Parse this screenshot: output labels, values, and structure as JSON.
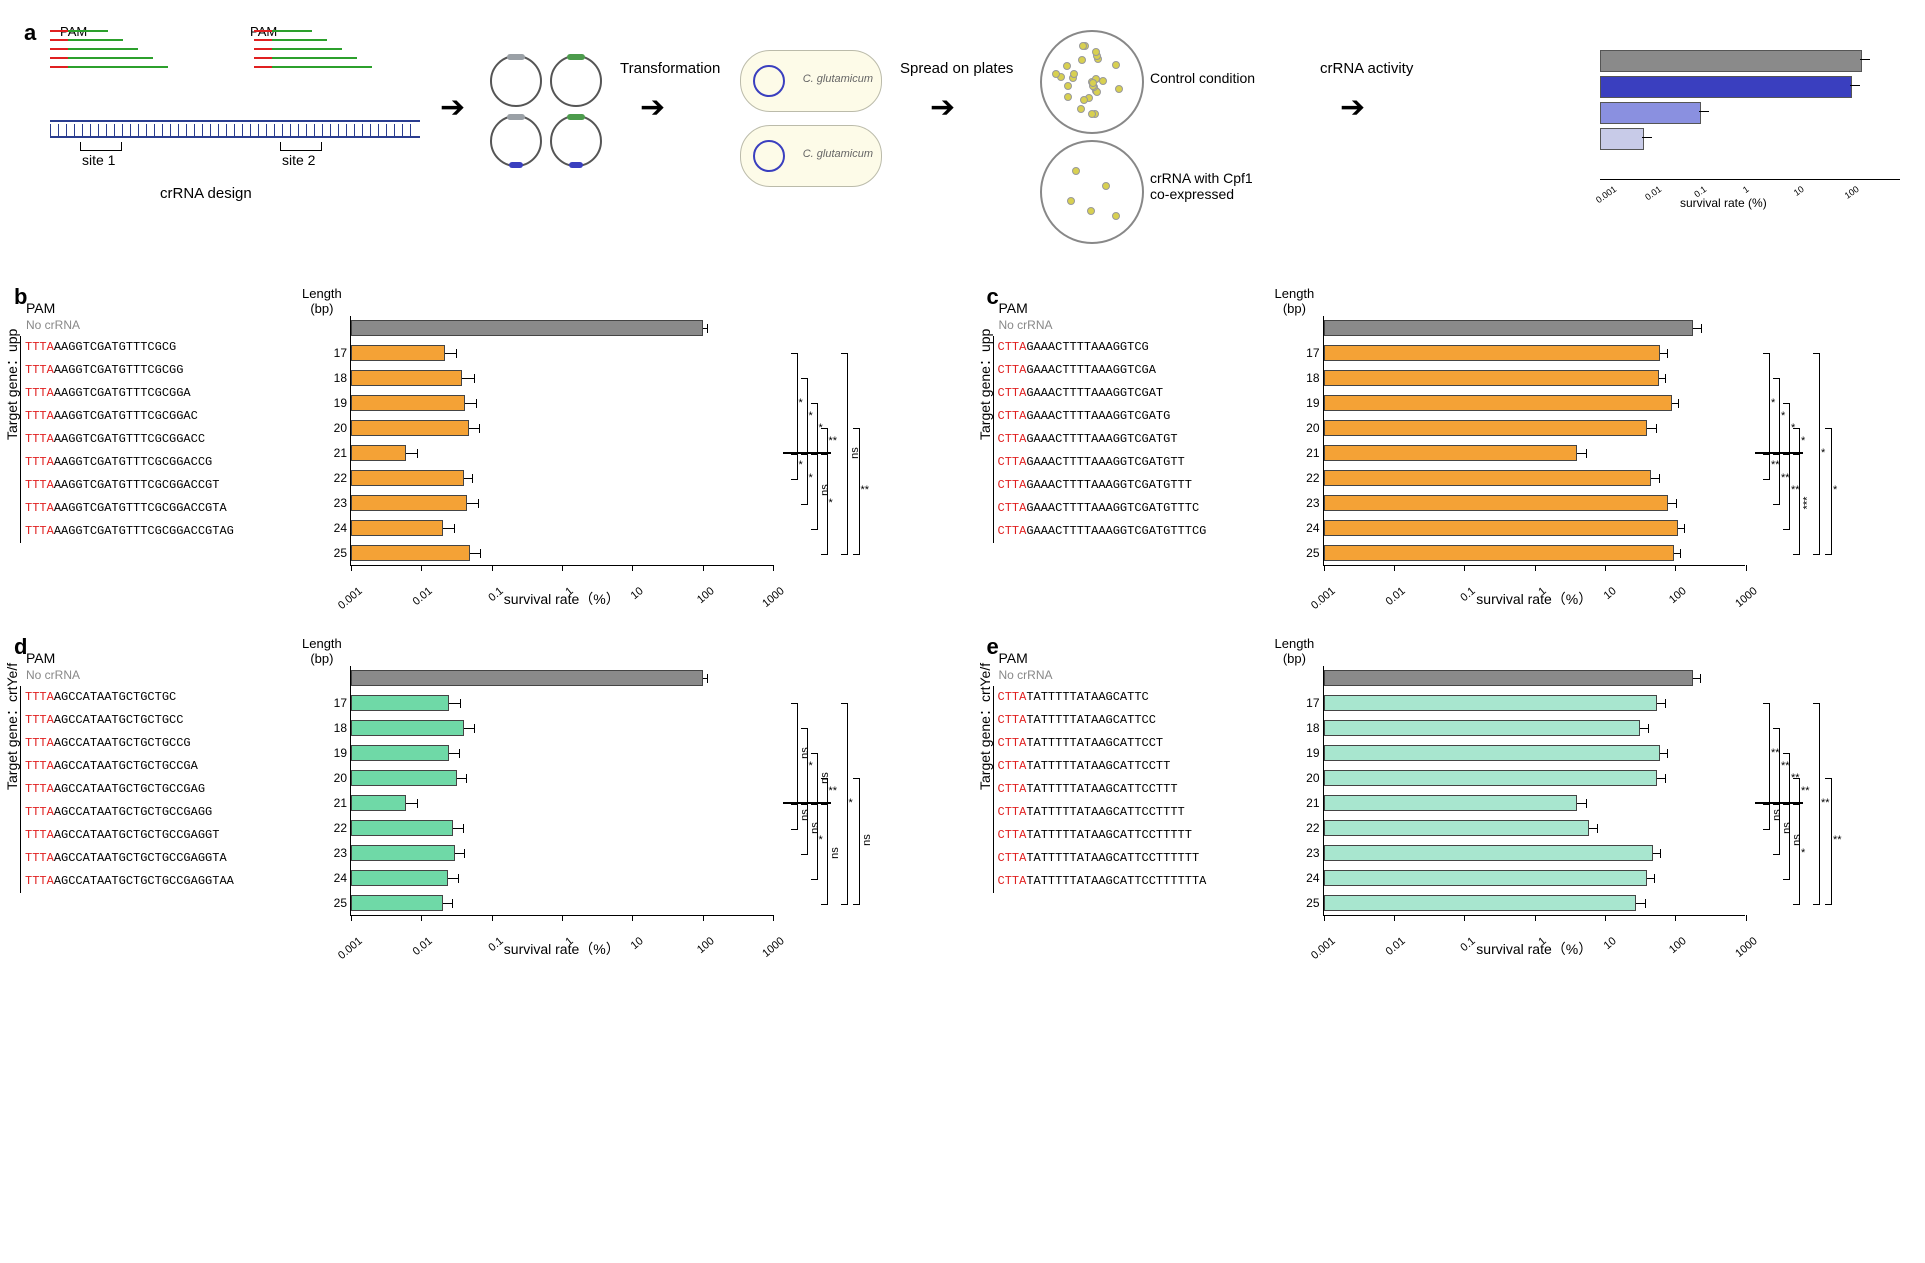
{
  "panel_labels": {
    "a": "a",
    "b": "b",
    "c": "c",
    "d": "d",
    "e": "e"
  },
  "panel_a": {
    "pam_label": "PAM",
    "site1": "site 1",
    "site2": "site 2",
    "crrna_design": "crRNA design",
    "transformation": "Transformation",
    "spread": "Spread on plates",
    "control": "Control condition",
    "coexpressed": "crRNA with Cpf1\nco-expressed",
    "activity": "crRNA activity",
    "mini_xlabel": "survival rate (%)",
    "mini_ticks": [
      "0.001",
      "0.01",
      "0.1",
      "1",
      "10",
      "100"
    ],
    "crrna_colors": {
      "pam": "#e02020",
      "guide": "#2ca02c",
      "dna": "#2a3d8f"
    },
    "crrna_lengths": [
      40,
      55,
      70,
      85,
      100
    ],
    "mini_bars": [
      {
        "color": "#8a8a8a",
        "width": 100
      },
      {
        "color": "#3a3fbf",
        "width": 96
      },
      {
        "color": "#8a90e0",
        "width": 38
      },
      {
        "color": "#c8cbe8",
        "width": 16
      }
    ],
    "c_glut": "C. glutamicum"
  },
  "panels": {
    "b": {
      "target": "Target gene：upp",
      "pam_header": "PAM",
      "nocrrna": "No crRNA",
      "len_header": "Length\n(bp)",
      "pam_color": "#e02020",
      "bar_color": "#f4a236",
      "ctrl_color": "#8a8a8a",
      "xaxis": "survival rate（%）",
      "xlim": [
        0.001,
        1000
      ],
      "xticks": [
        0.001,
        0.01,
        0.1,
        1,
        10,
        100,
        1000
      ],
      "rows": [
        {
          "len": "",
          "pam": "",
          "seq": "",
          "val": 100,
          "err": 20,
          "ctrl": true
        },
        {
          "len": "17",
          "pam": "TTTA",
          "seq": "AAGGTCGATGTTTCGCG",
          "val": 0.022,
          "err": 0.01
        },
        {
          "len": "18",
          "pam": "TTTA",
          "seq": "AAGGTCGATGTTTCGCGG",
          "val": 0.038,
          "err": 0.02
        },
        {
          "len": "19",
          "pam": "TTTA",
          "seq": "AAGGTCGATGTTTCGCGGA",
          "val": 0.042,
          "err": 0.02
        },
        {
          "len": "20",
          "pam": "TTTA",
          "seq": "AAGGTCGATGTTTCGCGGAC",
          "val": 0.048,
          "err": 0.02
        },
        {
          "len": "21",
          "pam": "TTTA",
          "seq": "AAGGTCGATGTTTCGCGGACC",
          "val": 0.006,
          "err": 0.003
        },
        {
          "len": "22",
          "pam": "TTTA",
          "seq": "AAGGTCGATGTTTCGCGGACCG",
          "val": 0.04,
          "err": 0.015
        },
        {
          "len": "23",
          "pam": "TTTA",
          "seq": "AAGGTCGATGTTTCGCGGACCGT",
          "val": 0.045,
          "err": 0.02
        },
        {
          "len": "24",
          "pam": "TTTA",
          "seq": "AAGGTCGATGTTTCGCGGACCGTA",
          "val": 0.02,
          "err": 0.01
        },
        {
          "len": "25",
          "pam": "TTTA",
          "seq": "AAGGTCGATGTTTCGCGGACCGTAG",
          "val": 0.05,
          "err": 0.02
        }
      ],
      "sigs": [
        {
          "from": 5,
          "to": 1,
          "x": 8,
          "label": "*"
        },
        {
          "from": 5,
          "to": 2,
          "x": 18,
          "label": "*"
        },
        {
          "from": 5,
          "to": 3,
          "x": 28,
          "label": "*"
        },
        {
          "from": 5,
          "to": 4,
          "x": 38,
          "label": "**"
        },
        {
          "from": 5,
          "to": 6,
          "x": 8,
          "label": "*",
          "below": true
        },
        {
          "from": 5,
          "to": 7,
          "x": 18,
          "label": "*",
          "below": true
        },
        {
          "from": 5,
          "to": 8,
          "x": 28,
          "label": "ns",
          "below": true
        },
        {
          "from": 5,
          "to": 9,
          "x": 38,
          "label": "*",
          "below": true
        },
        {
          "from": 1,
          "to": 9,
          "x": 58,
          "label": "ns"
        },
        {
          "from": 4,
          "to": 9,
          "x": 70,
          "label": "**"
        }
      ]
    },
    "c": {
      "target": "Target gene：upp",
      "pam_header": "PAM",
      "nocrrna": "No crRNA",
      "len_header": "Length\n(bp)",
      "pam_color": "#e02020",
      "bar_color": "#f4a236",
      "ctrl_color": "#8a8a8a",
      "xaxis": "survival rate（%）",
      "xlim": [
        0.001,
        1000
      ],
      "xticks": [
        0.001,
        0.01,
        0.1,
        1,
        10,
        100,
        1000
      ],
      "rows": [
        {
          "len": "",
          "pam": "",
          "seq": "",
          "val": 180,
          "err": 60,
          "ctrl": true
        },
        {
          "len": "17",
          "pam": "CTTA",
          "seq": "GAAACTTTTAAAGGTCG",
          "val": 60,
          "err": 20
        },
        {
          "len": "18",
          "pam": "CTTA",
          "seq": "GAAACTTTTAAAGGTCGA",
          "val": 58,
          "err": 15
        },
        {
          "len": "19",
          "pam": "CTTA",
          "seq": "GAAACTTTTAAAGGTCGAT",
          "val": 90,
          "err": 25
        },
        {
          "len": "20",
          "pam": "CTTA",
          "seq": "GAAACTTTTAAAGGTCGATG",
          "val": 40,
          "err": 15
        },
        {
          "len": "21",
          "pam": "CTTA",
          "seq": "GAAACTTTTAAAGGTCGATGT",
          "val": 4,
          "err": 1.5
        },
        {
          "len": "22",
          "pam": "CTTA",
          "seq": "GAAACTTTTAAAGGTCGATGTT",
          "val": 45,
          "err": 15
        },
        {
          "len": "23",
          "pam": "CTTA",
          "seq": "GAAACTTTTAAAGGTCGATGTTT",
          "val": 80,
          "err": 25
        },
        {
          "len": "24",
          "pam": "CTTA",
          "seq": "GAAACTTTTAAAGGTCGATGTTTC",
          "val": 110,
          "err": 30
        },
        {
          "len": "25",
          "pam": "CTTA",
          "seq": "GAAACTTTTAAAGGTCGATGTTTCG",
          "val": 95,
          "err": 25
        }
      ],
      "sigs": [
        {
          "from": 5,
          "to": 1,
          "x": 8,
          "label": "*"
        },
        {
          "from": 5,
          "to": 2,
          "x": 18,
          "label": "*"
        },
        {
          "from": 5,
          "to": 3,
          "x": 28,
          "label": "*"
        },
        {
          "from": 5,
          "to": 4,
          "x": 38,
          "label": "*"
        },
        {
          "from": 5,
          "to": 6,
          "x": 8,
          "label": "**",
          "below": true
        },
        {
          "from": 5,
          "to": 7,
          "x": 18,
          "label": "**",
          "below": true
        },
        {
          "from": 5,
          "to": 8,
          "x": 28,
          "label": "**",
          "below": true
        },
        {
          "from": 5,
          "to": 9,
          "x": 38,
          "label": "***",
          "below": true
        },
        {
          "from": 1,
          "to": 9,
          "x": 58,
          "label": "*"
        },
        {
          "from": 4,
          "to": 9,
          "x": 70,
          "label": "*"
        }
      ]
    },
    "d": {
      "target": "Target gene：crtYe/f",
      "pam_header": "PAM",
      "nocrrna": "No crRNA",
      "len_header": "Length\n(bp)",
      "pam_color": "#e02020",
      "bar_color": "#6fd9a7",
      "ctrl_color": "#8a8a8a",
      "xaxis": "survival rate（%）",
      "xlim": [
        0.001,
        1000
      ],
      "xticks": [
        0.001,
        0.01,
        0.1,
        1,
        10,
        100,
        1000
      ],
      "rows": [
        {
          "len": "",
          "pam": "",
          "seq": "",
          "val": 100,
          "err": 20,
          "ctrl": true
        },
        {
          "len": "17",
          "pam": "TTTA",
          "seq": "AGCCATAATGCTGCTGC",
          "val": 0.025,
          "err": 0.012
        },
        {
          "len": "18",
          "pam": "TTTA",
          "seq": "AGCCATAATGCTGCTGCC",
          "val": 0.04,
          "err": 0.018
        },
        {
          "len": "19",
          "pam": "TTTA",
          "seq": "AGCCATAATGCTGCTGCCG",
          "val": 0.025,
          "err": 0.01
        },
        {
          "len": "20",
          "pam": "TTTA",
          "seq": "AGCCATAATGCTGCTGCCGA",
          "val": 0.032,
          "err": 0.012
        },
        {
          "len": "21",
          "pam": "TTTA",
          "seq": "AGCCATAATGCTGCTGCCGAG",
          "val": 0.006,
          "err": 0.003
        },
        {
          "len": "22",
          "pam": "TTTA",
          "seq": "AGCCATAATGCTGCTGCCGAGG",
          "val": 0.028,
          "err": 0.012
        },
        {
          "len": "23",
          "pam": "TTTA",
          "seq": "AGCCATAATGCTGCTGCCGAGGT",
          "val": 0.03,
          "err": 0.012
        },
        {
          "len": "24",
          "pam": "TTTA",
          "seq": "AGCCATAATGCTGCTGCCGAGGTA",
          "val": 0.024,
          "err": 0.01
        },
        {
          "len": "25",
          "pam": "TTTA",
          "seq": "AGCCATAATGCTGCTGCCGAGGTAA",
          "val": 0.02,
          "err": 0.008
        }
      ],
      "sigs": [
        {
          "from": 5,
          "to": 1,
          "x": 8,
          "label": "ns"
        },
        {
          "from": 5,
          "to": 2,
          "x": 18,
          "label": "*"
        },
        {
          "from": 5,
          "to": 3,
          "x": 28,
          "label": "ns"
        },
        {
          "from": 5,
          "to": 4,
          "x": 38,
          "label": "**"
        },
        {
          "from": 5,
          "to": 6,
          "x": 8,
          "label": "ns",
          "below": true
        },
        {
          "from": 5,
          "to": 7,
          "x": 18,
          "label": "ns",
          "below": true
        },
        {
          "from": 5,
          "to": 8,
          "x": 28,
          "label": "*",
          "below": true
        },
        {
          "from": 5,
          "to": 9,
          "x": 38,
          "label": "ns",
          "below": true
        },
        {
          "from": 1,
          "to": 9,
          "x": 58,
          "label": "*"
        },
        {
          "from": 4,
          "to": 9,
          "x": 70,
          "label": "ns"
        }
      ]
    },
    "e": {
      "target": "Target gene：crtYe/f",
      "pam_header": "PAM",
      "nocrrna": "No crRNA",
      "len_header": "Length\n(bp)",
      "pam_color": "#e02020",
      "bar_color": "#a8e6cf",
      "ctrl_color": "#8a8a8a",
      "xaxis": "survival rate（%）",
      "xlim": [
        0.001,
        1000
      ],
      "xticks": [
        0.001,
        0.01,
        0.1,
        1,
        10,
        100,
        1000
      ],
      "rows": [
        {
          "len": "",
          "pam": "",
          "seq": "",
          "val": 180,
          "err": 50,
          "ctrl": true
        },
        {
          "len": "17",
          "pam": "CTTA",
          "seq": "TATTTTTATAAGCATTC",
          "val": 55,
          "err": 18
        },
        {
          "len": "18",
          "pam": "CTTA",
          "seq": "TATTTTTATAAGCATTCC",
          "val": 32,
          "err": 10
        },
        {
          "len": "19",
          "pam": "CTTA",
          "seq": "TATTTTTATAAGCATTCCT",
          "val": 60,
          "err": 18
        },
        {
          "len": "20",
          "pam": "CTTA",
          "seq": "TATTTTTATAAGCATTCCTT",
          "val": 55,
          "err": 18
        },
        {
          "len": "21",
          "pam": "CTTA",
          "seq": "TATTTTTATAAGCATTCCTTT",
          "val": 4,
          "err": 1.5
        },
        {
          "len": "22",
          "pam": "CTTA",
          "seq": "TATTTTTATAAGCATTCCTTTT",
          "val": 6,
          "err": 2
        },
        {
          "len": "23",
          "pam": "CTTA",
          "seq": "TATTTTTATAAGCATTCCTTTTT",
          "val": 48,
          "err": 15
        },
        {
          "len": "24",
          "pam": "CTTA",
          "seq": "TATTTTTATAAGCATTCCTTTTTT",
          "val": 40,
          "err": 12
        },
        {
          "len": "25",
          "pam": "CTTA",
          "seq": "TATTTTTATAAGCATTCCTTTTTTA",
          "val": 28,
          "err": 10
        }
      ],
      "sigs": [
        {
          "from": 5,
          "to": 1,
          "x": 8,
          "label": "**"
        },
        {
          "from": 5,
          "to": 2,
          "x": 18,
          "label": "**"
        },
        {
          "from": 5,
          "to": 3,
          "x": 28,
          "label": "**"
        },
        {
          "from": 5,
          "to": 4,
          "x": 38,
          "label": "**"
        },
        {
          "from": 5,
          "to": 6,
          "x": 8,
          "label": "ns",
          "below": true
        },
        {
          "from": 5,
          "to": 7,
          "x": 18,
          "label": "ns",
          "below": true
        },
        {
          "from": 5,
          "to": 8,
          "x": 28,
          "label": "ns",
          "below": true
        },
        {
          "from": 5,
          "to": 9,
          "x": 38,
          "label": "*",
          "below": true
        },
        {
          "from": 1,
          "to": 9,
          "x": 58,
          "label": "**"
        },
        {
          "from": 4,
          "to": 9,
          "x": 70,
          "label": "**"
        }
      ]
    }
  }
}
